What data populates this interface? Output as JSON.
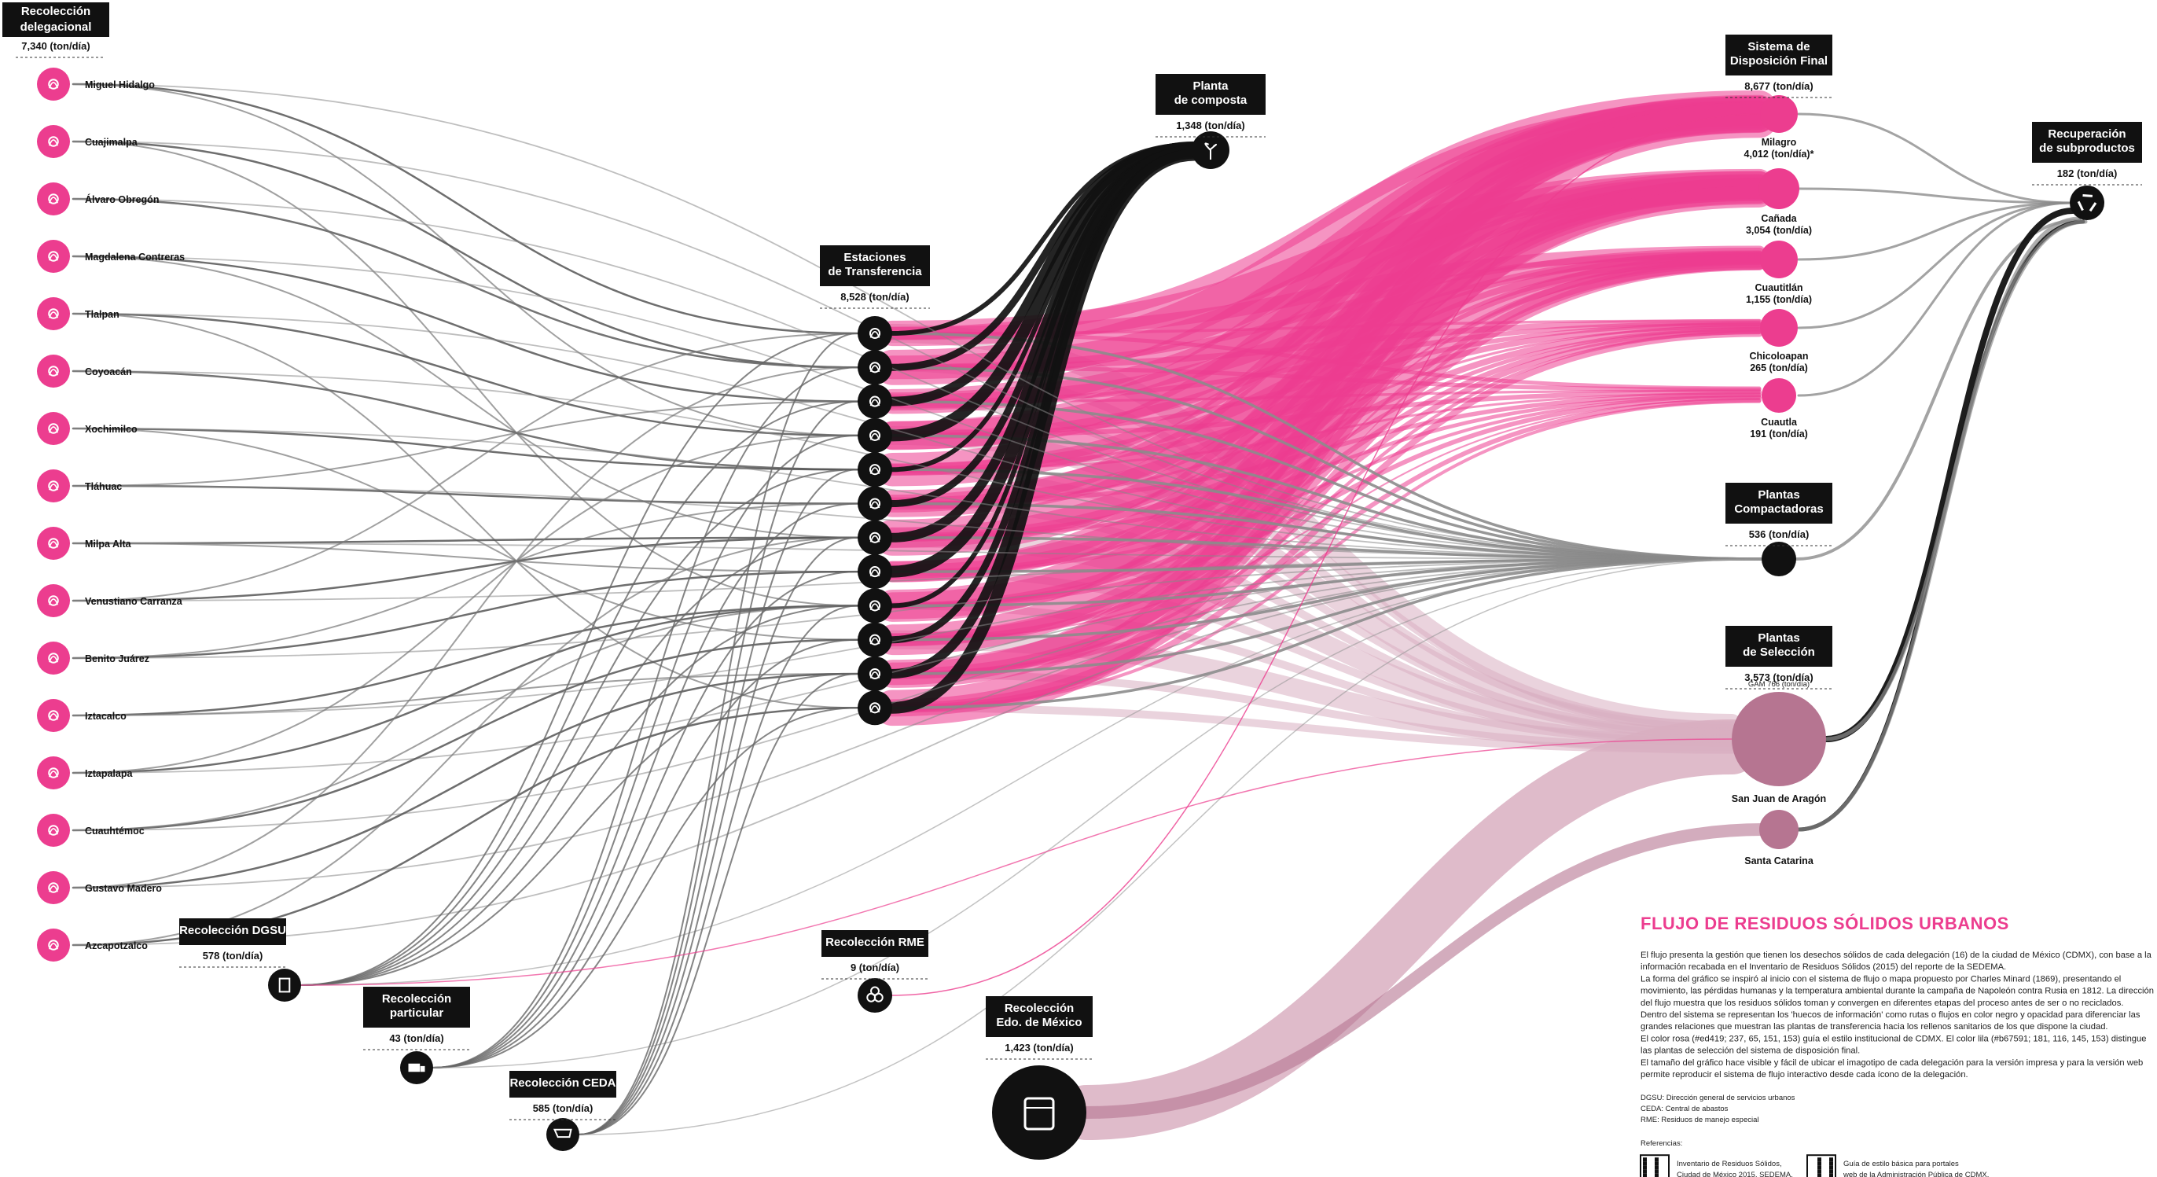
{
  "colors": {
    "pink": "#ec3d8f",
    "pink_light": "#f29ac4",
    "mauve": "#b67591",
    "mauve_light": "#d9afc1",
    "black": "#111111",
    "gray": "#8c8c8c"
  },
  "delegational": {
    "title": "Recolección delegacional",
    "value": "7,340 (ton/día)",
    "items": [
      {
        "name": "Miguel Hidalgo",
        "icon": "grasshopper-icon"
      },
      {
        "name": "Cuajimalpa",
        "icon": "axe-icon"
      },
      {
        "name": "Álvaro Obregón",
        "icon": "fence-icon"
      },
      {
        "name": "Magdalena Contreras",
        "icon": "hill-icon"
      },
      {
        "name": "Tlalpan",
        "icon": "footprint-icon"
      },
      {
        "name": "Coyoacán",
        "icon": "coyote-icon"
      },
      {
        "name": "Xochimilco",
        "icon": "flowers-icon"
      },
      {
        "name": "Tláhuac",
        "icon": "water-icon"
      },
      {
        "name": "Milpa Alta",
        "icon": "corn-icon"
      },
      {
        "name": "Venustiano Carranza",
        "icon": "crown-icon"
      },
      {
        "name": "Benito Juárez",
        "icon": "portrait-icon"
      },
      {
        "name": "Iztacalco",
        "icon": "house-icon"
      },
      {
        "name": "Iztapalapa",
        "icon": "cactus-icon"
      },
      {
        "name": "Cuauhtémoc",
        "icon": "eagle-icon"
      },
      {
        "name": "Gustavo Madero",
        "icon": "plant-icon"
      },
      {
        "name": "Azcapotzalco",
        "icon": "ant-icon"
      }
    ]
  },
  "sources": [
    {
      "title": "Recolección DGSU",
      "value": "578 (ton/día)",
      "icon": "document-icon"
    },
    {
      "title": "Recolección particular",
      "value": "43 (ton/día)",
      "icon": "truck-icon"
    },
    {
      "title": "Recolección CEDA",
      "value": "585 (ton/día)",
      "icon": "cart-icon"
    },
    {
      "title": "Recolección RME",
      "value": "9 (ton/día)",
      "icon": "biohazard-icon"
    },
    {
      "title": "Recolección Edo. de México",
      "value": "1,423 (ton/día)",
      "icon": "edomex-emblem-icon"
    }
  ],
  "transfer": {
    "title": "Estaciones de Transferencia",
    "value": "8,528 (ton/día)",
    "count": 12
  },
  "compost": {
    "title": "Planta de composta",
    "value": "1,348 (ton/día)",
    "icon": "sprout-icon"
  },
  "disposal": {
    "title": "Sistema de Disposición Final",
    "value": "8,677 (ton/día)",
    "sites": [
      {
        "name": "Milagro",
        "value": "4,012 (ton/día)*"
      },
      {
        "name": "Cañada",
        "value": "3,054 (ton/día)"
      },
      {
        "name": "Cuautitlán",
        "value": "1,155 (ton/día)"
      },
      {
        "name": "Chicoloapan",
        "value": "265 (ton/día)"
      },
      {
        "name": "Cuautla",
        "value": "191 (ton/día)"
      }
    ]
  },
  "compaction": {
    "title": "Plantas Compactadoras",
    "value": "536 (ton/día)"
  },
  "selection": {
    "title": "Plantas de Selección",
    "value": "3,573 (ton/día)",
    "note": "GAM 766 (ton/día)",
    "sites": [
      "San Juan de Aragón",
      "Santa Catarina"
    ]
  },
  "recovery": {
    "title": "Recuperación de subproductos",
    "value": "182 (ton/día)",
    "icon": "recycle-icon"
  },
  "info": {
    "title": "FLUJO DE RESIDUOS SÓLIDOS URBANOS",
    "paragraphs": [
      "El flujo presenta la gestión que tienen los desechos sólidos de cada delegación (16) de la ciudad de México (CDMX), con base a la",
      "información recabada en el Inventario de Residuos Sólidos (2015) del reporte de la SEDEMA.",
      "La forma del gráfico se inspiró al inicio con el sistema de flujo o mapa propuesto por Charles Minard (1869), presentando el",
      "movimiento, las pérdidas humanas y la temperatura ambiental durante la campaña de Napoleón contra Rusia en 1812. La dirección",
      "del flujo muestra que los residuos sólidos toman y convergen en diferentes etapas del proceso antes de ser o no reciclados.",
      "Dentro del sistema se representan los 'huecos de información' como rutas o flujos en color negro y opacidad para diferenciar las",
      "grandes relaciones que muestran las plantas de transferencia hacia los rellenos sanitarios de los que dispone la ciudad.",
      "El color rosa (#ed419; 237, 65, 151, 153) guía el estilo institucional de CDMX. El color lila (#b67591; 181, 116, 145, 153) distingue",
      "las plantas de selección del sistema de disposición final.",
      "El tamaño del gráfico hace visible y fácil de ubicar el imagotipo de cada delegación para la versión impresa y para la versión web",
      "permite reproducir el sistema de flujo interactivo desde cada ícono de la delegación."
    ],
    "abbreviations": [
      "DGSU: Dirección general de servicios urbanos",
      "CEDA: Central de abastos",
      "RME: Residuos de manejo especial"
    ],
    "refs_title": "Referencias:",
    "refs": [
      [
        "Inventario de Residuos Sólidos,",
        "Ciudad de México 2015. SEDEMA."
      ],
      [
        "Guía de estilo básica para portales",
        "web de la Administración Pública de CDMX."
      ]
    ]
  }
}
